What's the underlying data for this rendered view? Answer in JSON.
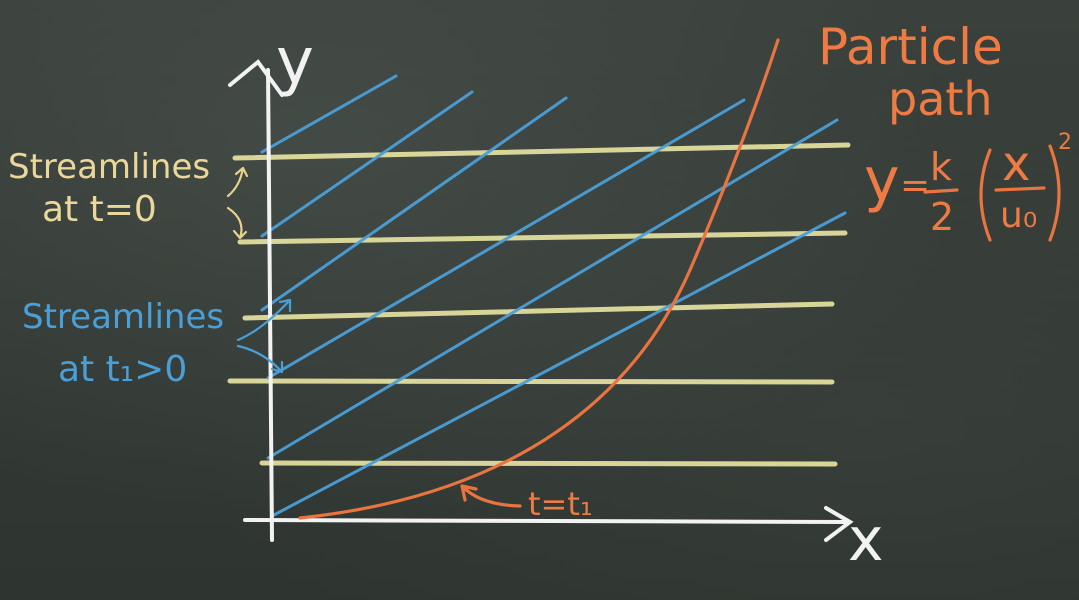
{
  "axes": {
    "x_label": "x",
    "y_label": "y"
  },
  "labels": {
    "streamlines_t0_line1": "Streamlines",
    "streamlines_t0_line2": "at t=0",
    "streamlines_t1_line1": "Streamlines",
    "streamlines_t1_line2": "at t₁>0",
    "particle_path_line1": "Particle",
    "particle_path_line2": "path",
    "time_label": "t=t₁"
  },
  "equation": {
    "lhs": "y",
    "eq": "=",
    "frac_num": "k",
    "frac_den": "2",
    "paren_num": "x",
    "paren_den": "u₀",
    "exponent": "2"
  },
  "colors": {
    "board": "#333934",
    "chalk_yellow": "#e6e2a0",
    "chalk_blue": "#4a9fd8",
    "chalk_white": "#f2f2f2",
    "chalk_orange": "#e8743f"
  }
}
